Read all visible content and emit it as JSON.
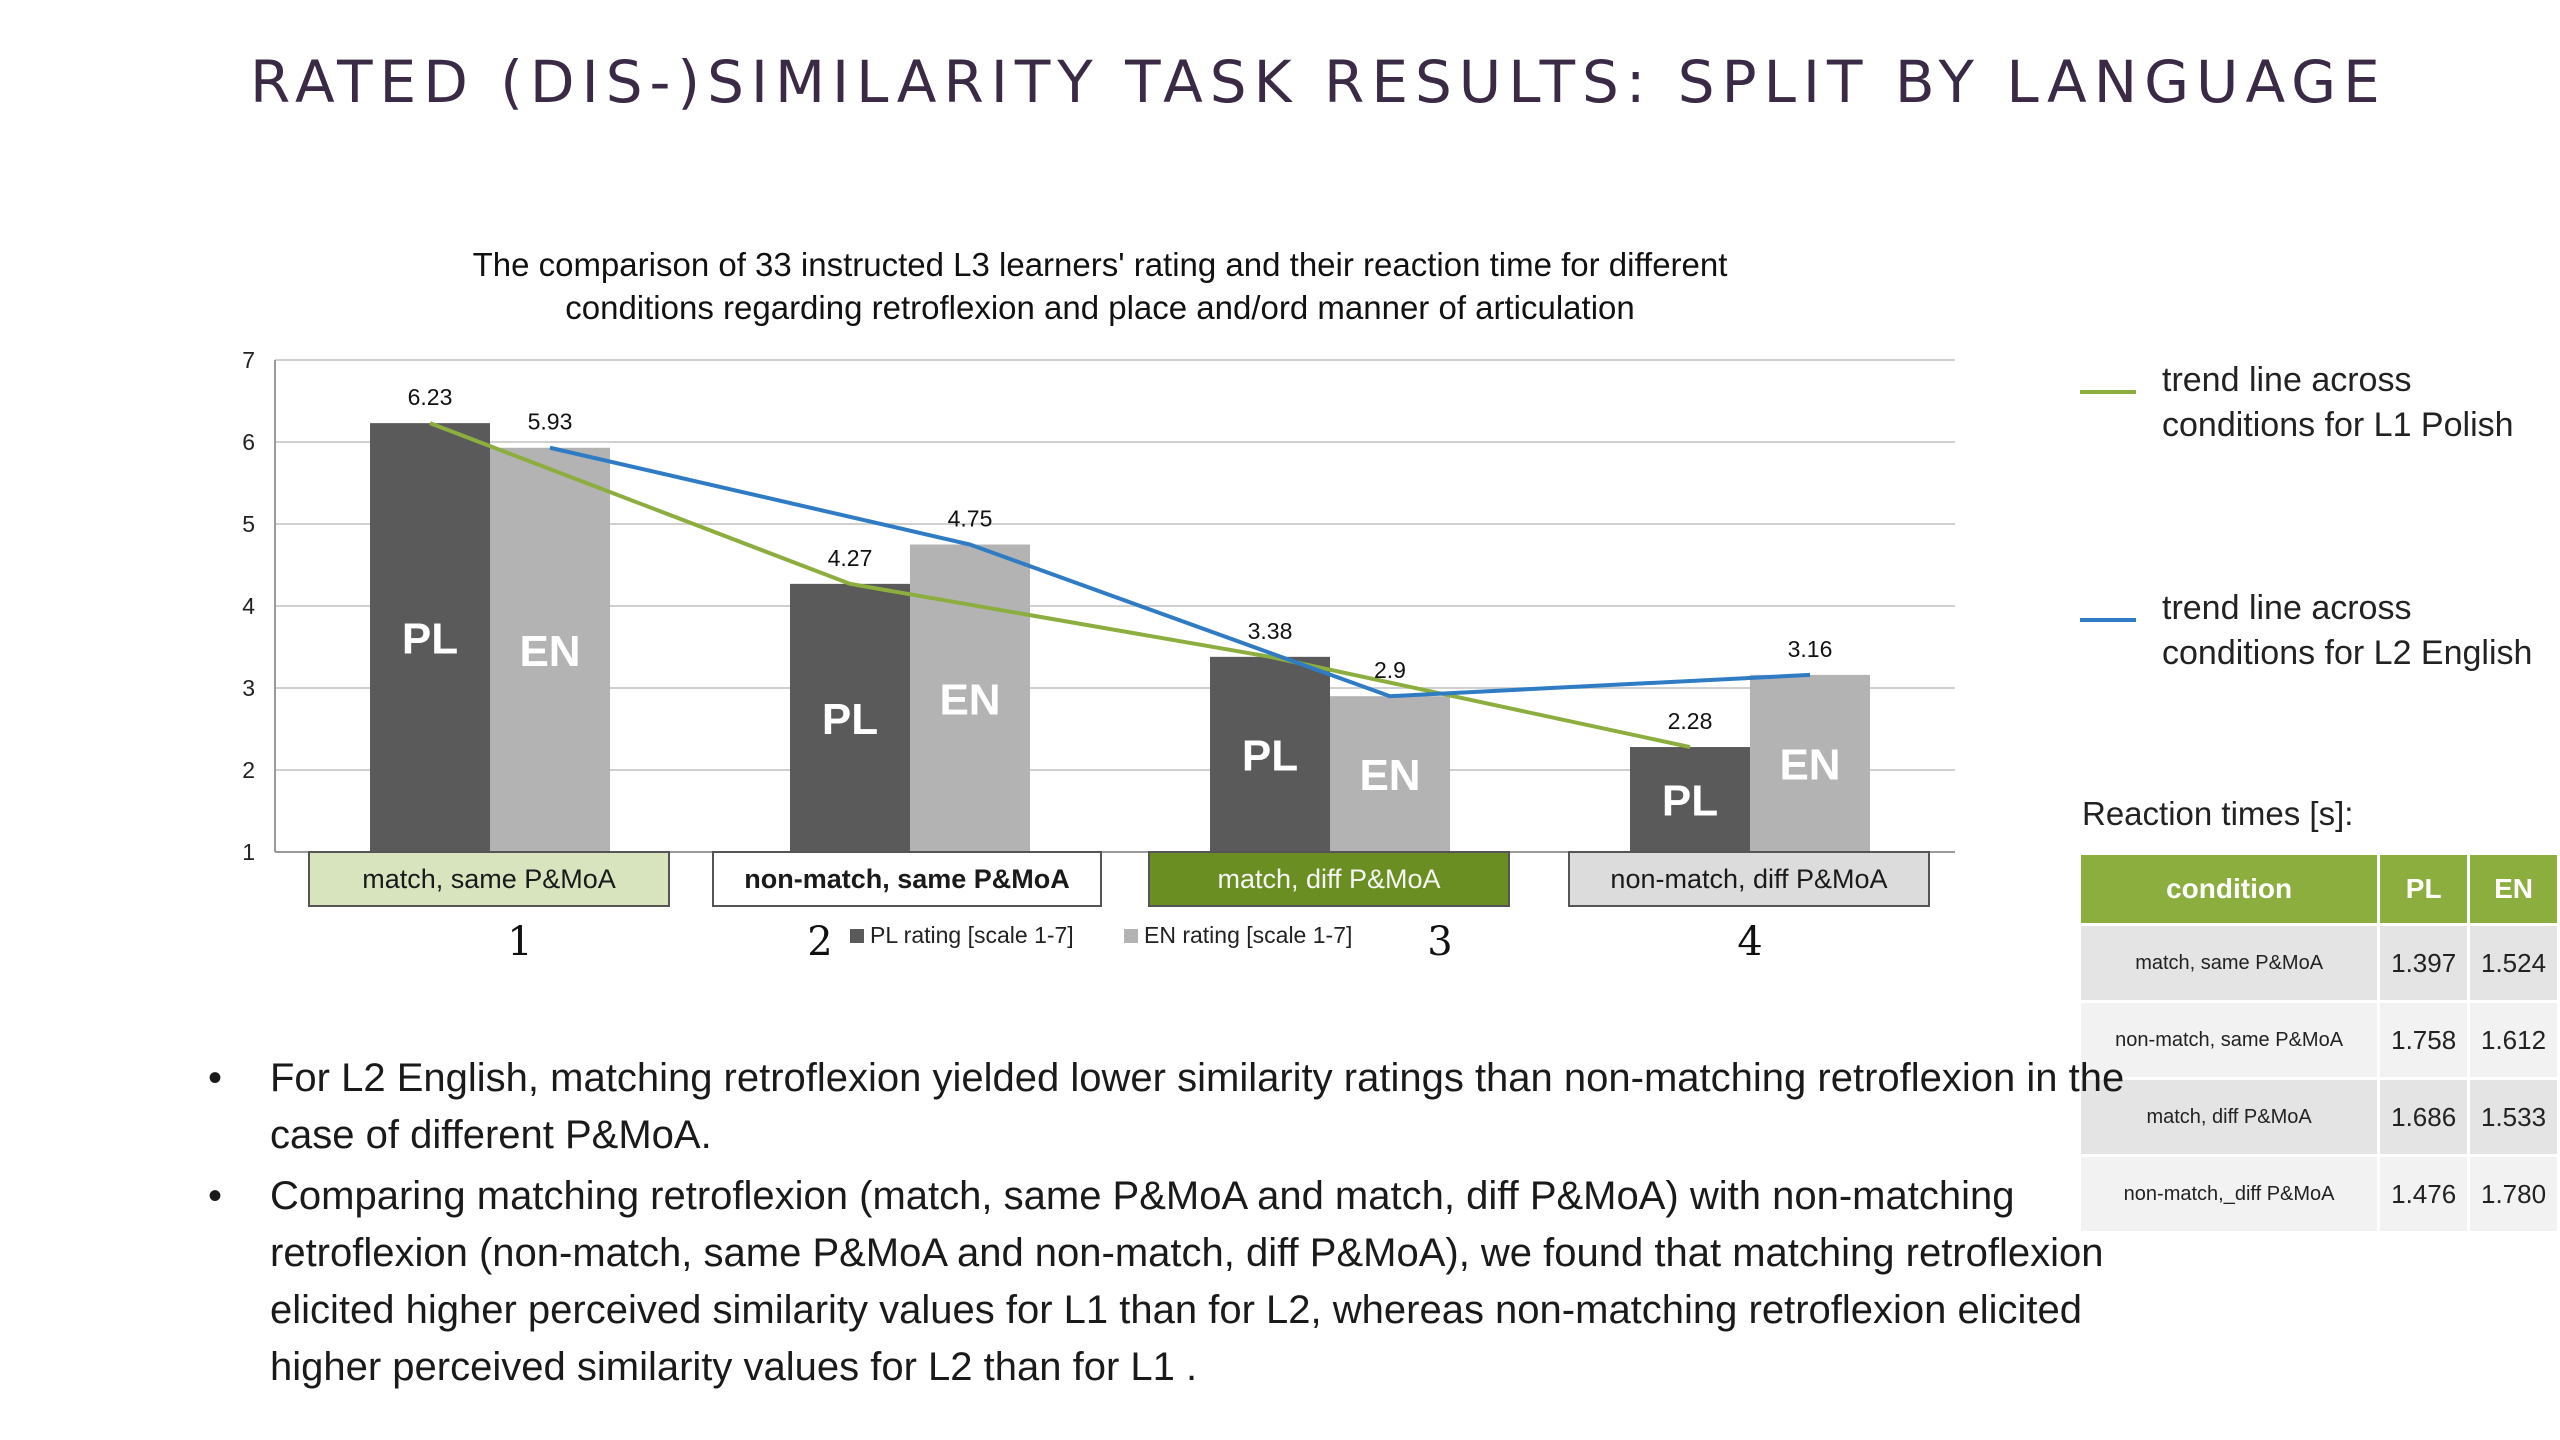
{
  "slide_title": "RATED (DIS-)SIMILARITY TASK RESULTS: SPLIT BY LANGUAGE",
  "chart_data": {
    "type": "bar",
    "title": "The comparison of 33 instructed L3 learners' rating and their reaction time for different conditions regarding retroflexion and place and/ord manner of articulation",
    "title_lines": [
      "The comparison of 33 instructed L3 learners' rating and their reaction time for different",
      "conditions regarding retroflexion and place and/ord manner of articulation"
    ],
    "ylim": [
      1,
      7
    ],
    "yticks": [
      "1",
      "2",
      "3",
      "4",
      "5",
      "6",
      "7"
    ],
    "grid": true,
    "categories": [
      "1",
      "2",
      "3",
      "4"
    ],
    "condition_labels": [
      "match, same P&MoA",
      "non-match, same P&MoA",
      "match, diff P&MoA",
      "non-match, diff P&MoA"
    ],
    "series": [
      {
        "name": "PL rating [scale 1-7]",
        "bar_text": "PL",
        "values": [
          6.23,
          4.27,
          3.38,
          2.28
        ],
        "value_labels": [
          "6.23",
          "4.27",
          "3.38",
          "2.28"
        ],
        "color": "#5a5a5a"
      },
      {
        "name": "EN rating [scale 1-7]",
        "bar_text": "EN",
        "values": [
          5.93,
          4.75,
          2.9,
          3.16
        ],
        "value_labels": [
          "5.93",
          "4.75",
          "2.9",
          "3.16"
        ],
        "color": "#b3b3b3"
      }
    ],
    "trend_lines": [
      {
        "name": "trend line across conditions for L1 Polish",
        "series": "PL",
        "color": "#8cae3e"
      },
      {
        "name": "trend line across conditions for L2 English",
        "series": "EN",
        "color": "#2f7cc5"
      }
    ],
    "legend_placement": "bottom"
  },
  "reaction_times": {
    "caption": "Reaction times [s]:",
    "headers": [
      "condition",
      "PL",
      "EN"
    ],
    "rows": [
      {
        "condition": "match, same P&MoA",
        "pl": "1.397",
        "en": "1.524"
      },
      {
        "condition": "non-match, same P&MoA",
        "pl": "1.758",
        "en": "1.612"
      },
      {
        "condition": "match, diff P&MoA",
        "pl": "1.686",
        "en": "1.533"
      },
      {
        "condition": "non-match,_diff P&MoA",
        "pl": "1.476",
        "en": "1.780"
      }
    ]
  },
  "bullets": [
    "For L2 English, matching retroflexion yielded lower similarity ratings than non-matching retroflexion in the case of different P&MoA.",
    "Comparing matching retroflexion (match, same P&MoA and match, diff P&MoA) with non-matching retroflexion (non-match, same P&MoA and non-match, diff P&MoA), we found that matching retroflexion elicited higher perceived similarity values for L1 than for L2, whereas non-matching retroflexion elicited higher perceived similarity values for L2 than for L1 ."
  ]
}
